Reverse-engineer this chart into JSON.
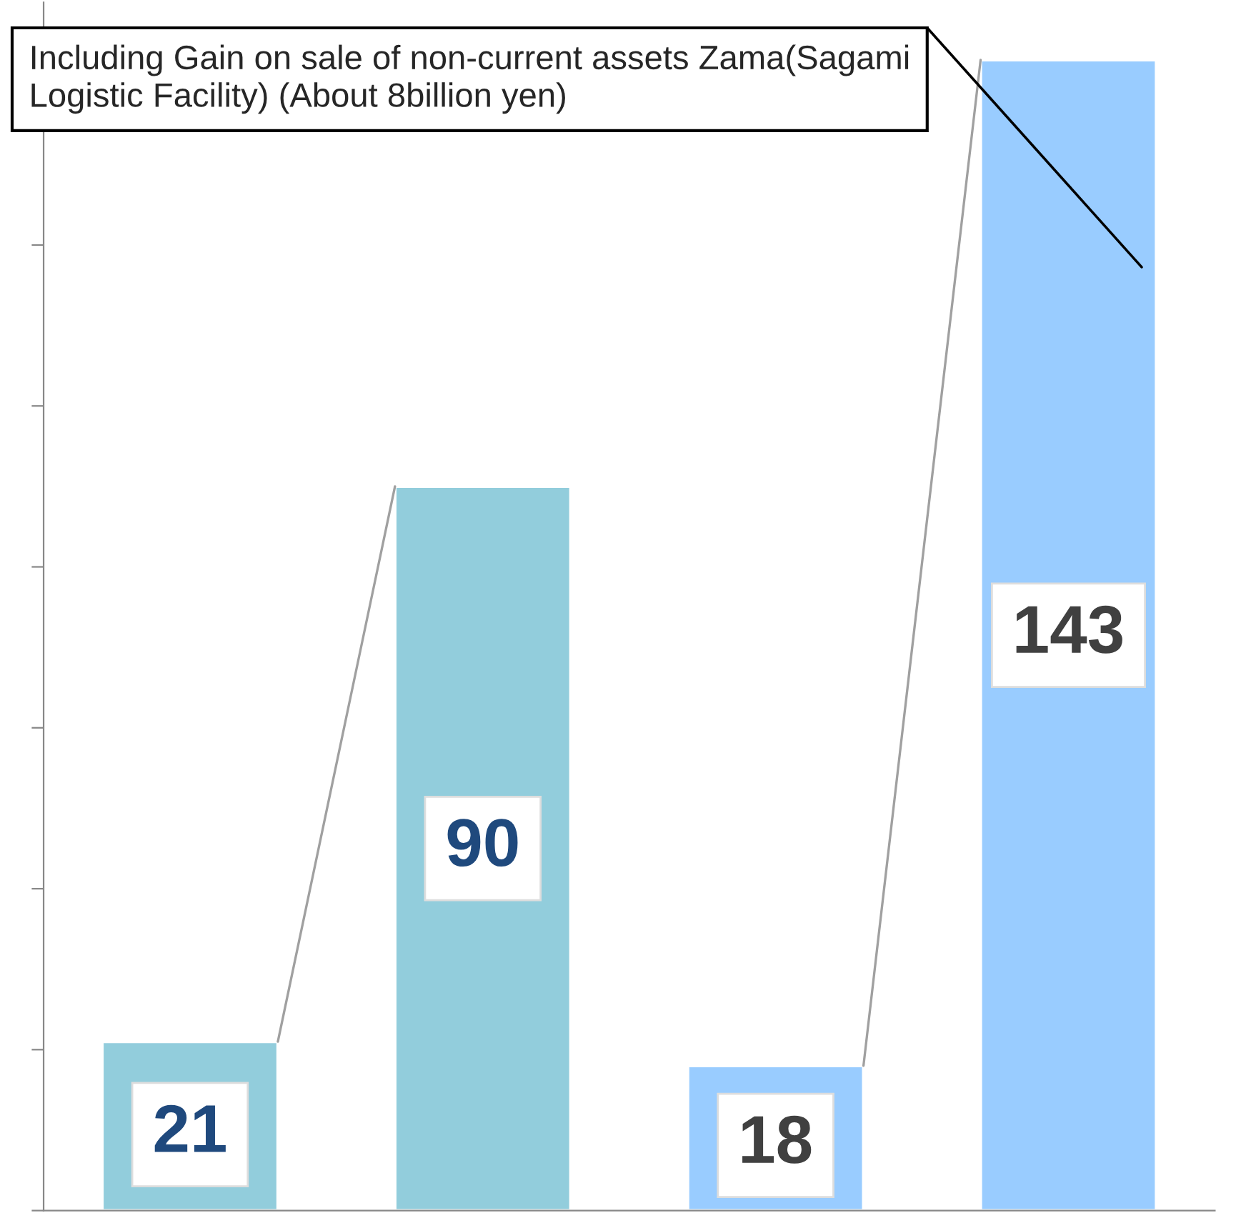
{
  "chart_data": {
    "type": "bar",
    "categories": [
      null,
      null,
      null,
      null
    ],
    "values": [
      21,
      90,
      18,
      143
    ],
    "colors": [
      "#92cddc",
      "#92cddc",
      "#99ccff",
      "#99ccff"
    ],
    "data_labels": true,
    "tick_labels": false,
    "grid": false,
    "legend": false,
    "annotations": [
      "Including Gain on sale of non-current assets Zama(Sagami Logistic Facility) (About 8billion yen)"
    ]
  }
}
